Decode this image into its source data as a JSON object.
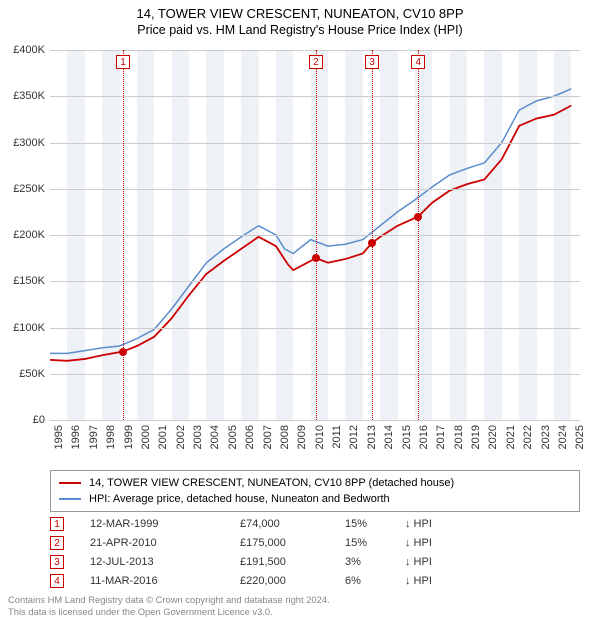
{
  "title": {
    "line1": "14, TOWER VIEW CRESCENT, NUNEATON, CV10 8PP",
    "line2": "Price paid vs. HM Land Registry's House Price Index (HPI)"
  },
  "chart": {
    "type": "line",
    "background_color": "#ffffff",
    "band_color": "#eef2f7",
    "grid_color": "#cccccc",
    "x_min": 1995,
    "x_max": 2025.5,
    "y_min": 0,
    "y_max": 400000,
    "y_ticks": [
      0,
      50000,
      100000,
      150000,
      200000,
      250000,
      300000,
      350000,
      400000
    ],
    "y_tick_labels": [
      "£0",
      "£50K",
      "£100K",
      "£150K",
      "£200K",
      "£250K",
      "£300K",
      "£350K",
      "£400K"
    ],
    "x_ticks": [
      1995,
      1996,
      1997,
      1998,
      1999,
      2000,
      2001,
      2002,
      2003,
      2004,
      2005,
      2006,
      2007,
      2008,
      2009,
      2010,
      2011,
      2012,
      2013,
      2014,
      2015,
      2016,
      2017,
      2018,
      2019,
      2020,
      2021,
      2022,
      2023,
      2024,
      2025
    ],
    "series": [
      {
        "name": "hpi",
        "color": "#5b8ccd",
        "width": 1.5,
        "points": [
          [
            1995,
            72000
          ],
          [
            1996,
            72000
          ],
          [
            1997,
            75000
          ],
          [
            1998,
            78000
          ],
          [
            1999,
            80000
          ],
          [
            2000,
            88000
          ],
          [
            2001,
            98000
          ],
          [
            2002,
            120000
          ],
          [
            2003,
            145000
          ],
          [
            2004,
            170000
          ],
          [
            2005,
            185000
          ],
          [
            2006,
            198000
          ],
          [
            2007,
            210000
          ],
          [
            2008,
            200000
          ],
          [
            2008.5,
            185000
          ],
          [
            2009,
            180000
          ],
          [
            2010,
            195000
          ],
          [
            2011,
            188000
          ],
          [
            2012,
            190000
          ],
          [
            2013,
            195000
          ],
          [
            2014,
            210000
          ],
          [
            2015,
            225000
          ],
          [
            2016,
            238000
          ],
          [
            2017,
            252000
          ],
          [
            2018,
            265000
          ],
          [
            2019,
            272000
          ],
          [
            2020,
            278000
          ],
          [
            2021,
            300000
          ],
          [
            2022,
            335000
          ],
          [
            2023,
            345000
          ],
          [
            2024,
            350000
          ],
          [
            2025,
            358000
          ]
        ]
      },
      {
        "name": "property",
        "color": "#cc0000",
        "width": 1.8,
        "points": [
          [
            1995,
            65000
          ],
          [
            1996,
            64000
          ],
          [
            1997,
            66000
          ],
          [
            1998,
            70000
          ],
          [
            1999.2,
            74000
          ],
          [
            2000,
            80000
          ],
          [
            2001,
            90000
          ],
          [
            2002,
            110000
          ],
          [
            2003,
            135000
          ],
          [
            2004,
            158000
          ],
          [
            2005,
            172000
          ],
          [
            2006,
            185000
          ],
          [
            2007,
            198000
          ],
          [
            2008,
            188000
          ],
          [
            2008.7,
            168000
          ],
          [
            2009,
            162000
          ],
          [
            2010.3,
            175000
          ],
          [
            2011,
            170000
          ],
          [
            2012,
            174000
          ],
          [
            2013,
            180000
          ],
          [
            2013.53,
            191500
          ],
          [
            2014,
            198000
          ],
          [
            2015,
            210000
          ],
          [
            2016.19,
            220000
          ],
          [
            2017,
            235000
          ],
          [
            2018,
            248000
          ],
          [
            2019,
            255000
          ],
          [
            2020,
            260000
          ],
          [
            2021,
            282000
          ],
          [
            2022,
            318000
          ],
          [
            2023,
            326000
          ],
          [
            2024,
            330000
          ],
          [
            2025,
            340000
          ]
        ]
      }
    ],
    "sale_points": {
      "color": "#cc0000",
      "points": [
        [
          1999.2,
          74000
        ],
        [
          2010.3,
          175000
        ],
        [
          2013.53,
          191500
        ],
        [
          2016.19,
          220000
        ]
      ]
    },
    "events": [
      {
        "n": "1",
        "x": 1999.2,
        "color": "#cc0000"
      },
      {
        "n": "2",
        "x": 2010.3,
        "color": "#cc0000"
      },
      {
        "n": "3",
        "x": 2013.53,
        "color": "#cc0000"
      },
      {
        "n": "4",
        "x": 2016.19,
        "color": "#cc0000"
      }
    ]
  },
  "legend": {
    "items": [
      {
        "color": "#cc0000",
        "label": "14, TOWER VIEW CRESCENT, NUNEATON, CV10 8PP (detached house)"
      },
      {
        "color": "#5b8ccd",
        "label": "HPI: Average price, detached house, Nuneaton and Bedworth"
      }
    ]
  },
  "events_table": {
    "rows": [
      {
        "n": "1",
        "date": "12-MAR-1999",
        "price": "£74,000",
        "delta": "15%",
        "arrow": "↓",
        "suffix": "HPI",
        "color": "#cc0000"
      },
      {
        "n": "2",
        "date": "21-APR-2010",
        "price": "£175,000",
        "delta": "15%",
        "arrow": "↓",
        "suffix": "HPI",
        "color": "#cc0000"
      },
      {
        "n": "3",
        "date": "12-JUL-2013",
        "price": "£191,500",
        "delta": "3%",
        "arrow": "↓",
        "suffix": "HPI",
        "color": "#cc0000"
      },
      {
        "n": "4",
        "date": "11-MAR-2016",
        "price": "£220,000",
        "delta": "6%",
        "arrow": "↓",
        "suffix": "HPI",
        "color": "#cc0000"
      }
    ]
  },
  "footer": {
    "line1": "Contains HM Land Registry data © Crown copyright and database right 2024.",
    "line2": "This data is licensed under the Open Government Licence v3.0."
  }
}
